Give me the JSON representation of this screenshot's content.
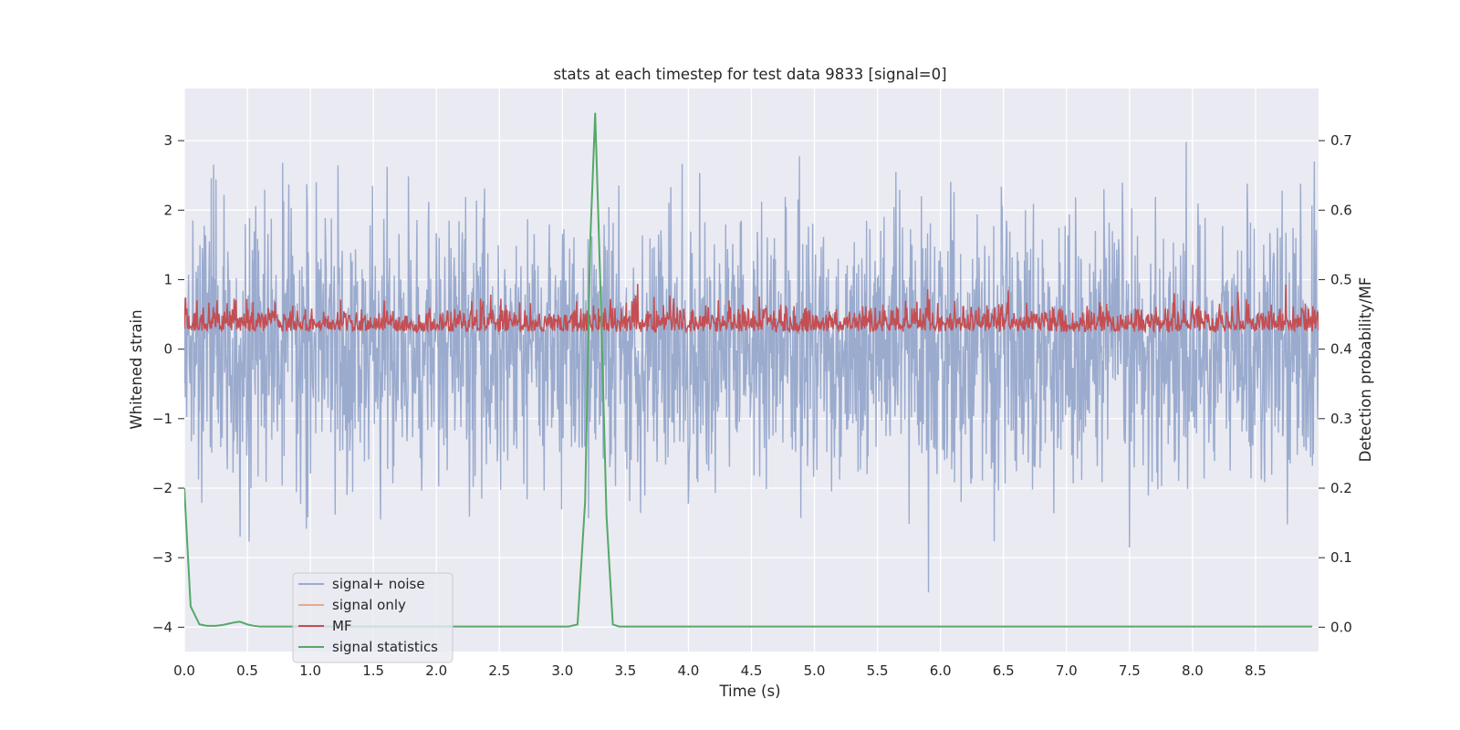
{
  "chart_data": {
    "type": "line",
    "title": "stats at each timestep for test data 9833 [signal=0]",
    "xlabel": "Time (s)",
    "ylabel_left": "Whitened strain",
    "ylabel_right": "Detection probability/MF",
    "xlim": [
      0.0,
      9.0
    ],
    "ylim_left": [
      -4.35,
      3.75
    ],
    "ylim_right": [
      -0.035,
      0.775
    ],
    "x_ticks": [
      "0.0",
      "0.5",
      "1.0",
      "1.5",
      "2.0",
      "2.5",
      "3.0",
      "3.5",
      "4.0",
      "4.5",
      "5.0",
      "5.5",
      "6.0",
      "6.5",
      "7.0",
      "7.5",
      "8.0",
      "8.5"
    ],
    "y_left_ticks": [
      "3",
      "2",
      "1",
      "0",
      "−1",
      "−2",
      "−3",
      "−4"
    ],
    "y_right_ticks": [
      "0.7",
      "0.6",
      "0.5",
      "0.4",
      "0.3",
      "0.2",
      "0.1",
      "0.0"
    ],
    "grid": true,
    "legend_position": "lower-left",
    "legend": [
      "signal+ noise",
      "signal only",
      "MF",
      "signal statistics"
    ],
    "colors": {
      "signal_noise": "#9aabce",
      "signal_only": "#e8a98a",
      "mf": "#c44e52",
      "stats": "#55a868",
      "background": "#eaeaf2",
      "grid": "#ffffff"
    },
    "series": [
      {
        "name": "signal+ noise",
        "axis": "left",
        "description_range": [
          -3.5,
          3.4
        ],
        "noise_sigma": 1.0
      },
      {
        "name": "signal only",
        "axis": "left",
        "constant": 0
      },
      {
        "name": "MF",
        "axis": "right",
        "range": [
          0.4,
          0.5
        ]
      },
      {
        "name": "signal statistics",
        "axis": "right",
        "x": [
          0.0,
          0.05,
          0.12,
          0.18,
          0.25,
          0.3,
          0.35,
          0.4,
          0.44,
          0.5,
          0.55,
          0.6,
          1.0,
          2.0,
          2.9,
          3.05,
          3.12,
          3.18,
          3.22,
          3.26,
          3.3,
          3.35,
          3.4,
          3.45,
          3.5,
          4.0,
          5.0,
          6.0,
          7.0,
          8.0,
          8.95
        ],
        "values": [
          0.2,
          0.03,
          0.004,
          0.002,
          0.002,
          0.003,
          0.005,
          0.007,
          0.008,
          0.004,
          0.002,
          0.001,
          0.001,
          0.001,
          0.001,
          0.001,
          0.004,
          0.18,
          0.55,
          0.74,
          0.5,
          0.16,
          0.004,
          0.001,
          0.001,
          0.001,
          0.001,
          0.001,
          0.001,
          0.001,
          0.001
        ]
      }
    ]
  }
}
